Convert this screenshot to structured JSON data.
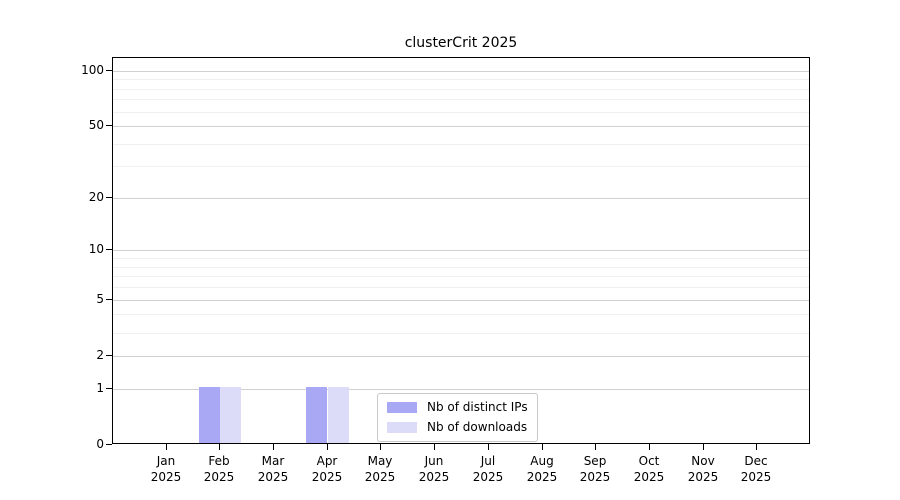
{
  "chart_data": {
    "type": "bar",
    "title": "clusterCrit 2025",
    "categories": [
      [
        "Jan",
        "2025"
      ],
      [
        "Feb",
        "2025"
      ],
      [
        "Mar",
        "2025"
      ],
      [
        "Apr",
        "2025"
      ],
      [
        "May",
        "2025"
      ],
      [
        "Jun",
        "2025"
      ],
      [
        "Jul",
        "2025"
      ],
      [
        "Aug",
        "2025"
      ],
      [
        "Sep",
        "2025"
      ],
      [
        "Oct",
        "2025"
      ],
      [
        "Nov",
        "2025"
      ],
      [
        "Dec",
        "2025"
      ]
    ],
    "series": [
      {
        "name": "Nb of distinct IPs",
        "color": "#a8a8f4",
        "values": [
          0,
          1,
          0,
          1,
          0,
          0,
          0,
          0,
          0,
          0,
          0,
          0
        ]
      },
      {
        "name": "Nb of downloads",
        "color": "#dcdcf8",
        "values": [
          0,
          1,
          0,
          1,
          0,
          0,
          0,
          0,
          0,
          0,
          0,
          0
        ]
      }
    ],
    "xlabel": "",
    "ylabel": "",
    "yscale": "log1p",
    "yticks": [
      0,
      1,
      2,
      5,
      10,
      20,
      50,
      100
    ],
    "yticks_minor": [
      3,
      4,
      6,
      7,
      8,
      9,
      30,
      40,
      60,
      70,
      80,
      90
    ],
    "ylim": [
      0,
      117
    ],
    "grid": "both",
    "legend_position": "lower center"
  },
  "colors": {
    "background": "#ffffff",
    "axis": "#000000",
    "grid_major": "#d0d0d0",
    "grid_minor": "#f0f0f0",
    "legend_border": "#c8c8c8",
    "text": "#000000"
  }
}
